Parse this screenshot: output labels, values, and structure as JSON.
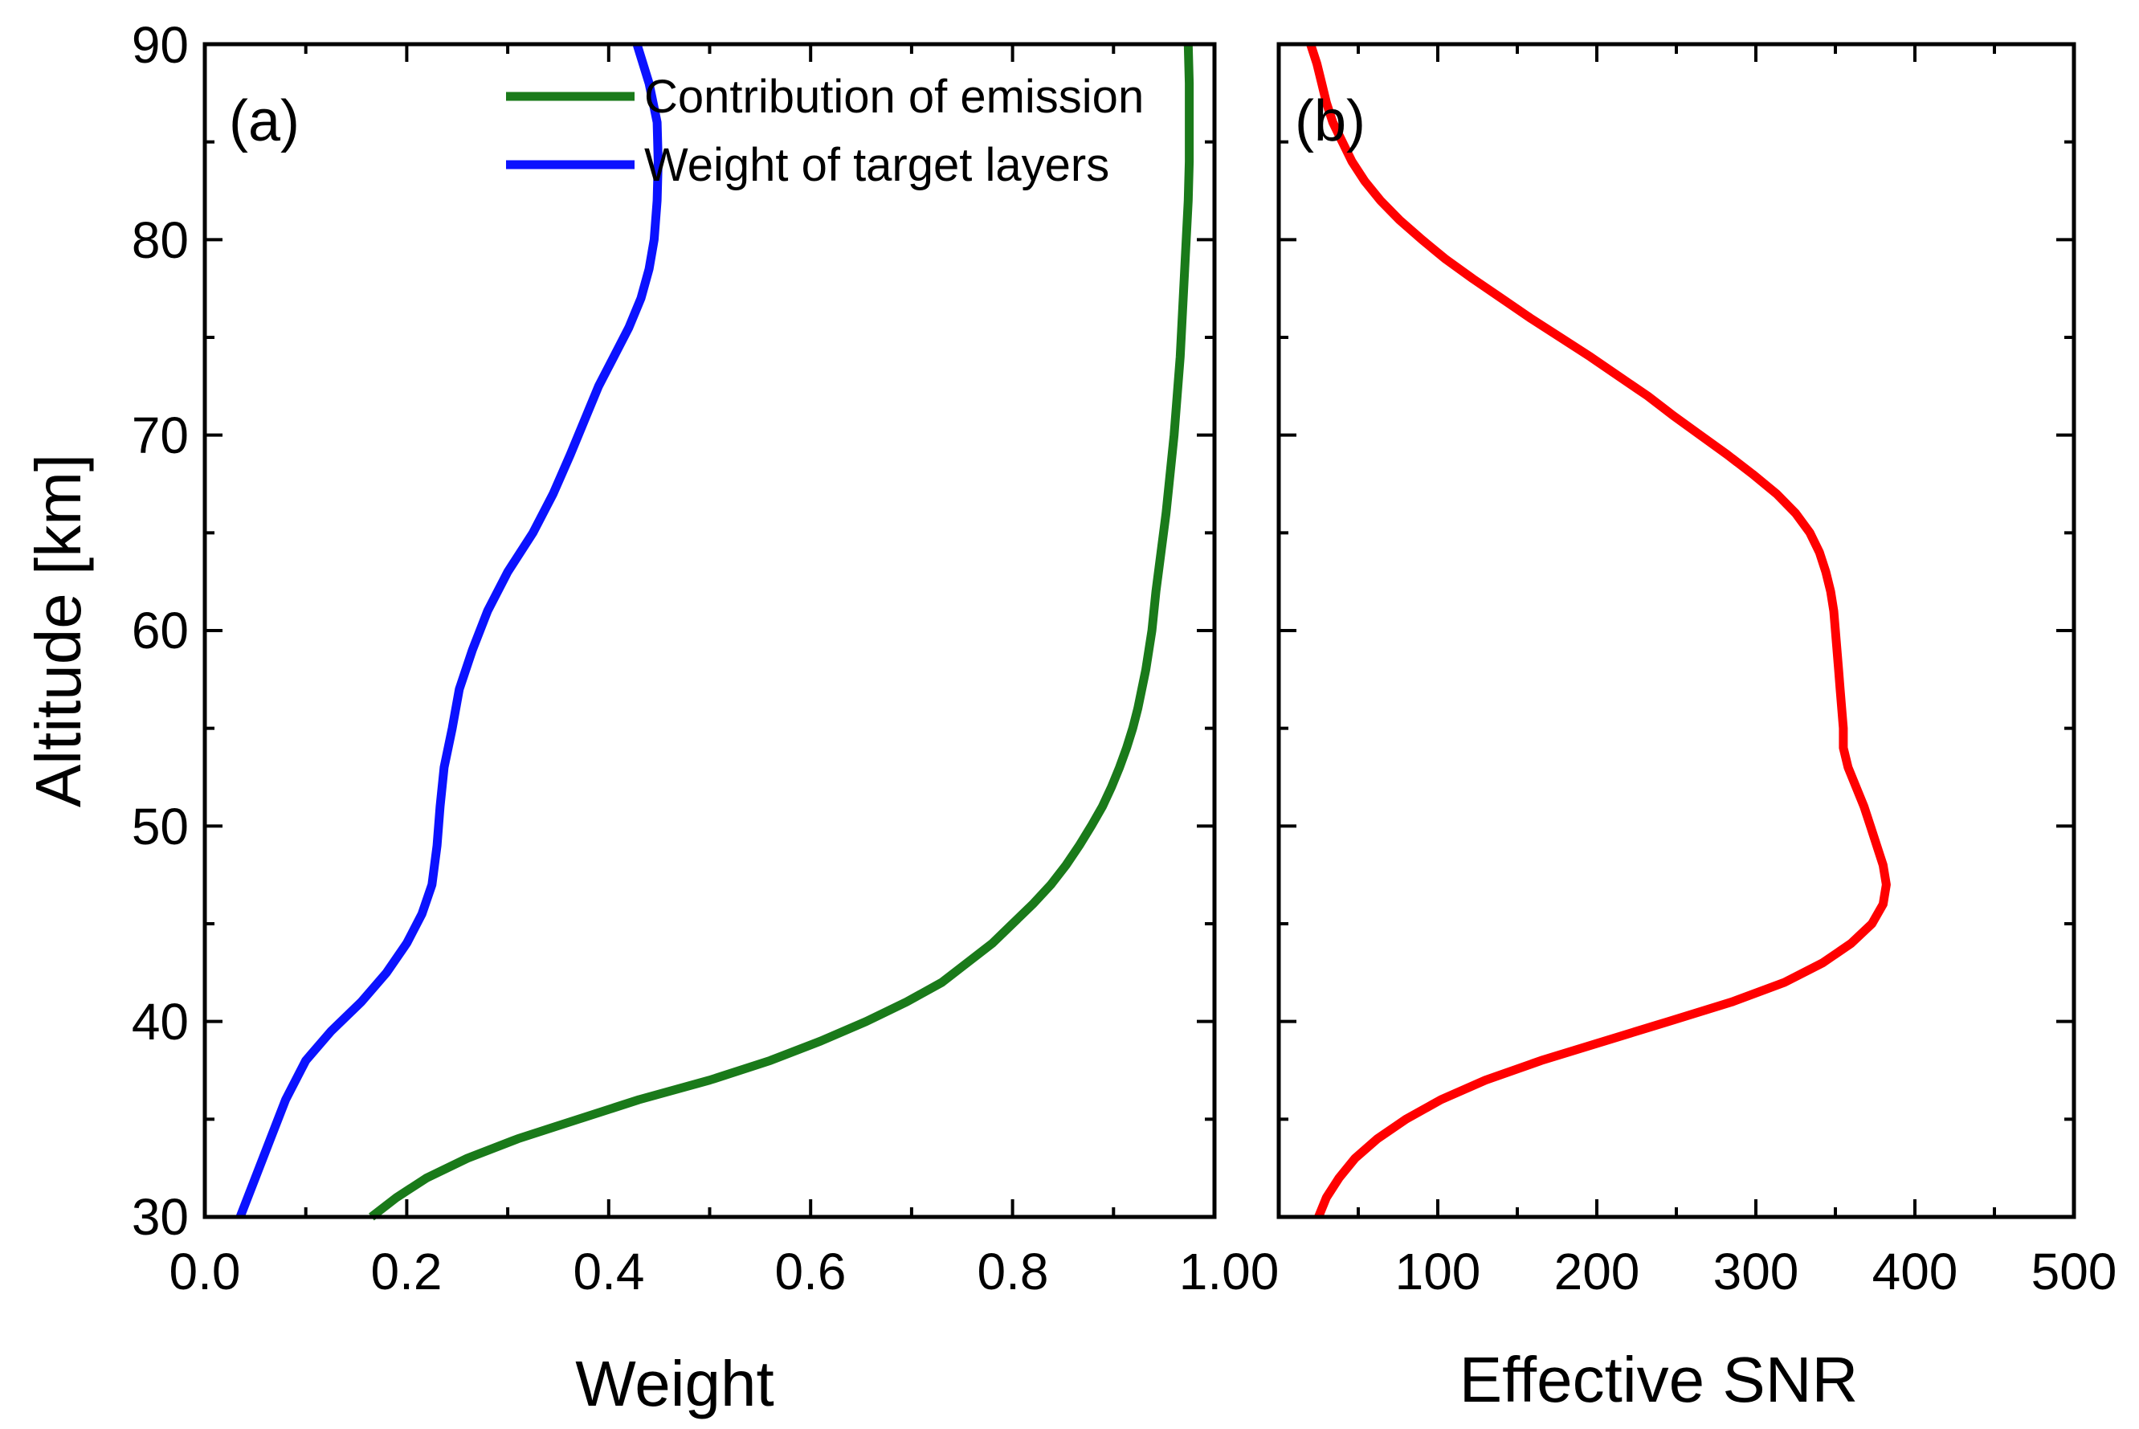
{
  "colors": {
    "green": "#1a7a1a",
    "blue": "#0b12ff",
    "red": "#ff0000"
  },
  "y_axis": {
    "label": "Altitude [km]",
    "ylim": [
      30,
      90
    ],
    "ticks": [
      "30",
      "40",
      "50",
      "60",
      "70",
      "80",
      "90"
    ]
  },
  "chart_data": [
    {
      "type": "line",
      "panel_label": "(a)",
      "xlabel": "Weight",
      "ylabel": "Altitude [km]",
      "xlim": [
        0.0,
        1.0
      ],
      "ylim": [
        30,
        90
      ],
      "x_ticks": [
        "0.0",
        "0.2",
        "0.4",
        "0.6",
        "0.8",
        "1.00"
      ],
      "legend": [
        "Contribution of emission",
        "Weight of target layers"
      ],
      "series": [
        {
          "name": "Contribution of emission",
          "color": "#1a7a1a",
          "points": [
            [
              0.165,
              30
            ],
            [
              0.19,
              31
            ],
            [
              0.22,
              32
            ],
            [
              0.26,
              33
            ],
            [
              0.31,
              34
            ],
            [
              0.37,
              35
            ],
            [
              0.43,
              36
            ],
            [
              0.5,
              37
            ],
            [
              0.56,
              38
            ],
            [
              0.61,
              39
            ],
            [
              0.655,
              40
            ],
            [
              0.695,
              41
            ],
            [
              0.73,
              42
            ],
            [
              0.755,
              43
            ],
            [
              0.78,
              44
            ],
            [
              0.8,
              45
            ],
            [
              0.82,
              46
            ],
            [
              0.838,
              47
            ],
            [
              0.853,
              48
            ],
            [
              0.866,
              49
            ],
            [
              0.878,
              50
            ],
            [
              0.889,
              51
            ],
            [
              0.898,
              52
            ],
            [
              0.906,
              53
            ],
            [
              0.913,
              54
            ],
            [
              0.919,
              55
            ],
            [
              0.924,
              56
            ],
            [
              0.928,
              57
            ],
            [
              0.932,
              58
            ],
            [
              0.935,
              59
            ],
            [
              0.938,
              60
            ],
            [
              0.942,
              62
            ],
            [
              0.947,
              64
            ],
            [
              0.952,
              66
            ],
            [
              0.956,
              68
            ],
            [
              0.96,
              70
            ],
            [
              0.963,
              72
            ],
            [
              0.966,
              74
            ],
            [
              0.968,
              76
            ],
            [
              0.97,
              78
            ],
            [
              0.972,
              80
            ],
            [
              0.974,
              82
            ],
            [
              0.975,
              84
            ],
            [
              0.975,
              86
            ],
            [
              0.975,
              88
            ],
            [
              0.974,
              90
            ]
          ]
        },
        {
          "name": "Weight of target layers",
          "color": "#0b12ff",
          "points": [
            [
              0.035,
              30
            ],
            [
              0.05,
              32
            ],
            [
              0.065,
              34
            ],
            [
              0.08,
              36
            ],
            [
              0.1,
              38
            ],
            [
              0.125,
              39.5
            ],
            [
              0.155,
              41
            ],
            [
              0.18,
              42.5
            ],
            [
              0.2,
              44
            ],
            [
              0.215,
              45.5
            ],
            [
              0.225,
              47
            ],
            [
              0.23,
              49
            ],
            [
              0.233,
              51
            ],
            [
              0.237,
              53
            ],
            [
              0.245,
              55
            ],
            [
              0.252,
              57
            ],
            [
              0.265,
              59
            ],
            [
              0.28,
              61
            ],
            [
              0.3,
              63
            ],
            [
              0.325,
              65
            ],
            [
              0.345,
              67
            ],
            [
              0.362,
              69
            ],
            [
              0.378,
              71
            ],
            [
              0.39,
              72.5
            ],
            [
              0.405,
              74
            ],
            [
              0.42,
              75.5
            ],
            [
              0.432,
              77
            ],
            [
              0.44,
              78.5
            ],
            [
              0.445,
              80
            ],
            [
              0.448,
              82
            ],
            [
              0.449,
              84
            ],
            [
              0.448,
              86
            ],
            [
              0.44,
              88
            ],
            [
              0.428,
              90
            ]
          ]
        }
      ]
    },
    {
      "type": "line",
      "panel_label": "(b)",
      "xlabel": "Effective SNR",
      "ylabel": "Altitude [km]",
      "xlim": [
        0,
        500
      ],
      "ylim": [
        30,
        90
      ],
      "x_ticks": [
        "100",
        "200",
        "300",
        "400",
        "500"
      ],
      "series": [
        {
          "name": "Effective SNR",
          "color": "#ff0000",
          "points": [
            [
              25,
              30
            ],
            [
              30,
              31
            ],
            [
              38,
              32
            ],
            [
              48,
              33
            ],
            [
              62,
              34
            ],
            [
              80,
              35
            ],
            [
              102,
              36
            ],
            [
              130,
              37
            ],
            [
              165,
              38
            ],
            [
              205,
              39
            ],
            [
              245,
              40
            ],
            [
              285,
              41
            ],
            [
              318,
              42
            ],
            [
              342,
              43
            ],
            [
              360,
              44
            ],
            [
              373,
              45
            ],
            [
              380,
              46
            ],
            [
              382,
              47
            ],
            [
              380,
              48
            ],
            [
              376,
              49
            ],
            [
              372,
              50
            ],
            [
              368,
              51
            ],
            [
              363,
              52
            ],
            [
              358,
              53
            ],
            [
              355,
              54
            ],
            [
              355,
              55
            ],
            [
              354,
              56
            ],
            [
              353,
              57
            ],
            [
              352,
              58
            ],
            [
              351,
              59
            ],
            [
              350,
              60
            ],
            [
              349,
              61
            ],
            [
              347,
              62
            ],
            [
              344,
              63
            ],
            [
              340,
              64
            ],
            [
              334,
              65
            ],
            [
              325,
              66
            ],
            [
              313,
              67
            ],
            [
              298,
              68
            ],
            [
              282,
              69
            ],
            [
              265,
              70
            ],
            [
              248,
              71
            ],
            [
              232,
              72
            ],
            [
              214,
              73
            ],
            [
              196,
              74
            ],
            [
              177,
              75
            ],
            [
              158,
              76
            ],
            [
              140,
              77
            ],
            [
              122,
              78
            ],
            [
              105,
              79
            ],
            [
              90,
              80
            ],
            [
              76,
              81
            ],
            [
              64,
              82
            ],
            [
              54,
              83
            ],
            [
              46,
              84
            ],
            [
              40,
              85
            ],
            [
              34,
              86
            ],
            [
              30,
              87
            ],
            [
              27,
              88
            ],
            [
              24,
              89
            ],
            [
              20,
              90
            ]
          ]
        }
      ]
    }
  ]
}
